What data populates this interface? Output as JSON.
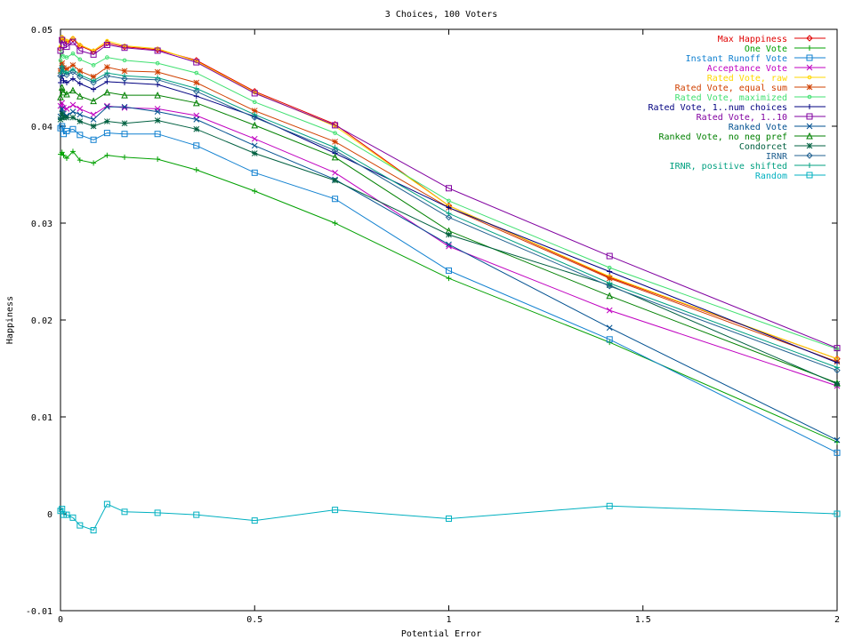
{
  "chart_data": {
    "type": "line",
    "title": "3 Choices, 100 Voters",
    "xlabel": "Potential Error",
    "ylabel": "Happiness",
    "xlim": [
      0,
      2
    ],
    "ylim": [
      -0.01,
      0.05
    ],
    "xticks": [
      "0",
      "0.5",
      "1",
      "1.5",
      "2"
    ],
    "yticks": [
      "-0.01",
      "0",
      "0.01",
      "0.02",
      "0.03",
      "0.04",
      "0.05"
    ],
    "xtick_values": [
      0,
      0.5,
      1,
      1.5,
      2
    ],
    "ytick_values": [
      -0.01,
      0,
      0.01,
      0.02,
      0.03,
      0.04,
      0.05
    ],
    "grid": false,
    "legend_position": "top-right",
    "x": [
      0,
      0.004,
      0.008,
      0.016,
      0.032,
      0.05,
      0.085,
      0.12,
      0.165,
      0.25,
      0.35,
      0.5,
      0.707,
      1,
      1.414,
      2
    ],
    "series": [
      {
        "name": "Max Happiness",
        "color": "#e00000",
        "marker": "diamond",
        "values": [
          0.048,
          0.0491,
          0.0489,
          0.0487,
          0.049,
          0.0483,
          0.0477,
          0.0486,
          0.0482,
          0.0479,
          0.0468,
          0.0436,
          0.0402,
          0.0318,
          0.0244,
          0.016
        ]
      },
      {
        "name": "One Vote",
        "color": "#00a000",
        "marker": "plus",
        "values": [
          0.0371,
          0.0373,
          0.037,
          0.0367,
          0.0374,
          0.0365,
          0.0362,
          0.037,
          0.0368,
          0.0366,
          0.0355,
          0.0333,
          0.03,
          0.0243,
          0.0177,
          0.0074
        ]
      },
      {
        "name": "Instant Runoff Vote",
        "color": "#1080d0",
        "marker": "square",
        "values": [
          0.0398,
          0.04,
          0.0392,
          0.0395,
          0.0397,
          0.0391,
          0.0386,
          0.0393,
          0.0392,
          0.0392,
          0.038,
          0.0352,
          0.0325,
          0.0251,
          0.018,
          0.0063
        ]
      },
      {
        "name": "Acceptance Vote",
        "color": "#c000c0",
        "marker": "cross",
        "values": [
          0.0421,
          0.0424,
          0.0419,
          0.0418,
          0.0422,
          0.0418,
          0.0412,
          0.0421,
          0.0419,
          0.0418,
          0.0411,
          0.0387,
          0.0352,
          0.0276,
          0.021,
          0.0132
        ]
      },
      {
        "name": "Rated Vote, raw",
        "color": "#ffd700",
        "marker": "dot",
        "values": [
          0.0482,
          0.0492,
          0.049,
          0.0488,
          0.0491,
          0.0484,
          0.0478,
          0.0488,
          0.0483,
          0.048,
          0.0467,
          0.0435,
          0.04,
          0.0318,
          0.0245,
          0.016
        ]
      },
      {
        "name": "Rated Vote, equal sum",
        "color": "#d04000",
        "marker": "star",
        "values": [
          0.0457,
          0.0465,
          0.046,
          0.0459,
          0.0463,
          0.0457,
          0.0451,
          0.0461,
          0.0457,
          0.0456,
          0.0445,
          0.0416,
          0.0384,
          0.0316,
          0.0243,
          0.0157
        ]
      },
      {
        "name": "Rated Vote, maximized",
        "color": "#40e070",
        "marker": "dot",
        "values": [
          0.0468,
          0.0477,
          0.0472,
          0.0471,
          0.0475,
          0.0469,
          0.0463,
          0.0471,
          0.0468,
          0.0465,
          0.0455,
          0.0425,
          0.0393,
          0.0323,
          0.0254,
          0.017
        ]
      },
      {
        "name": "Rated Vote, 1..num choices",
        "color": "#000080",
        "marker": "plus",
        "values": [
          0.0445,
          0.0452,
          0.0447,
          0.0445,
          0.0449,
          0.0444,
          0.0438,
          0.0446,
          0.0445,
          0.0443,
          0.0431,
          0.041,
          0.0372,
          0.0316,
          0.025,
          0.0156
        ]
      },
      {
        "name": "Rated Vote, 1..10",
        "color": "#8000a0",
        "marker": "square",
        "values": [
          0.0478,
          0.0489,
          0.0484,
          0.0482,
          0.0487,
          0.0478,
          0.0474,
          0.0484,
          0.0481,
          0.0478,
          0.0466,
          0.0434,
          0.0401,
          0.0336,
          0.0266,
          0.0171
        ]
      },
      {
        "name": "Ranked Vote",
        "color": "#005090",
        "marker": "cross",
        "values": [
          0.041,
          0.0418,
          0.0413,
          0.0411,
          0.0415,
          0.0412,
          0.0407,
          0.042,
          0.042,
          0.0415,
          0.0407,
          0.038,
          0.0345,
          0.0278,
          0.0192,
          0.0076
        ]
      },
      {
        "name": "Ranked Vote, no neg pref",
        "color": "#008000",
        "marker": "triangle",
        "values": [
          0.043,
          0.044,
          0.0435,
          0.0433,
          0.0437,
          0.0431,
          0.0426,
          0.0435,
          0.0432,
          0.0432,
          0.0424,
          0.0401,
          0.0368,
          0.0292,
          0.0225,
          0.0135
        ]
      },
      {
        "name": "Condorcet",
        "color": "#006040",
        "marker": "star",
        "values": [
          0.0407,
          0.0413,
          0.0409,
          0.0409,
          0.0409,
          0.0405,
          0.04,
          0.0405,
          0.0403,
          0.0406,
          0.0397,
          0.0372,
          0.0344,
          0.0288,
          0.0236,
          0.0134
        ]
      },
      {
        "name": "IRNR",
        "color": "#206090",
        "marker": "diamond",
        "values": [
          0.0452,
          0.046,
          0.0455,
          0.0453,
          0.0456,
          0.0451,
          0.0445,
          0.0452,
          0.0449,
          0.0448,
          0.0436,
          0.0409,
          0.0375,
          0.0306,
          0.0235,
          0.0148
        ]
      },
      {
        "name": "IRNR, positive shifted",
        "color": "#00a080",
        "marker": "plus",
        "values": [
          0.0455,
          0.0462,
          0.0457,
          0.0455,
          0.0459,
          0.0453,
          0.0447,
          0.0455,
          0.0452,
          0.045,
          0.0439,
          0.0412,
          0.0378,
          0.031,
          0.0238,
          0.0151
        ]
      },
      {
        "name": "Random",
        "color": "#00b0c0",
        "marker": "square",
        "values": [
          0.0003,
          0.0005,
          -0.0001,
          -0.0001,
          -0.0004,
          -0.0012,
          -0.0017,
          0.001,
          0.0002,
          0.0001,
          -0.0001,
          -0.0007,
          0.0004,
          -0.0005,
          0.0008,
          0.0
        ]
      }
    ]
  }
}
